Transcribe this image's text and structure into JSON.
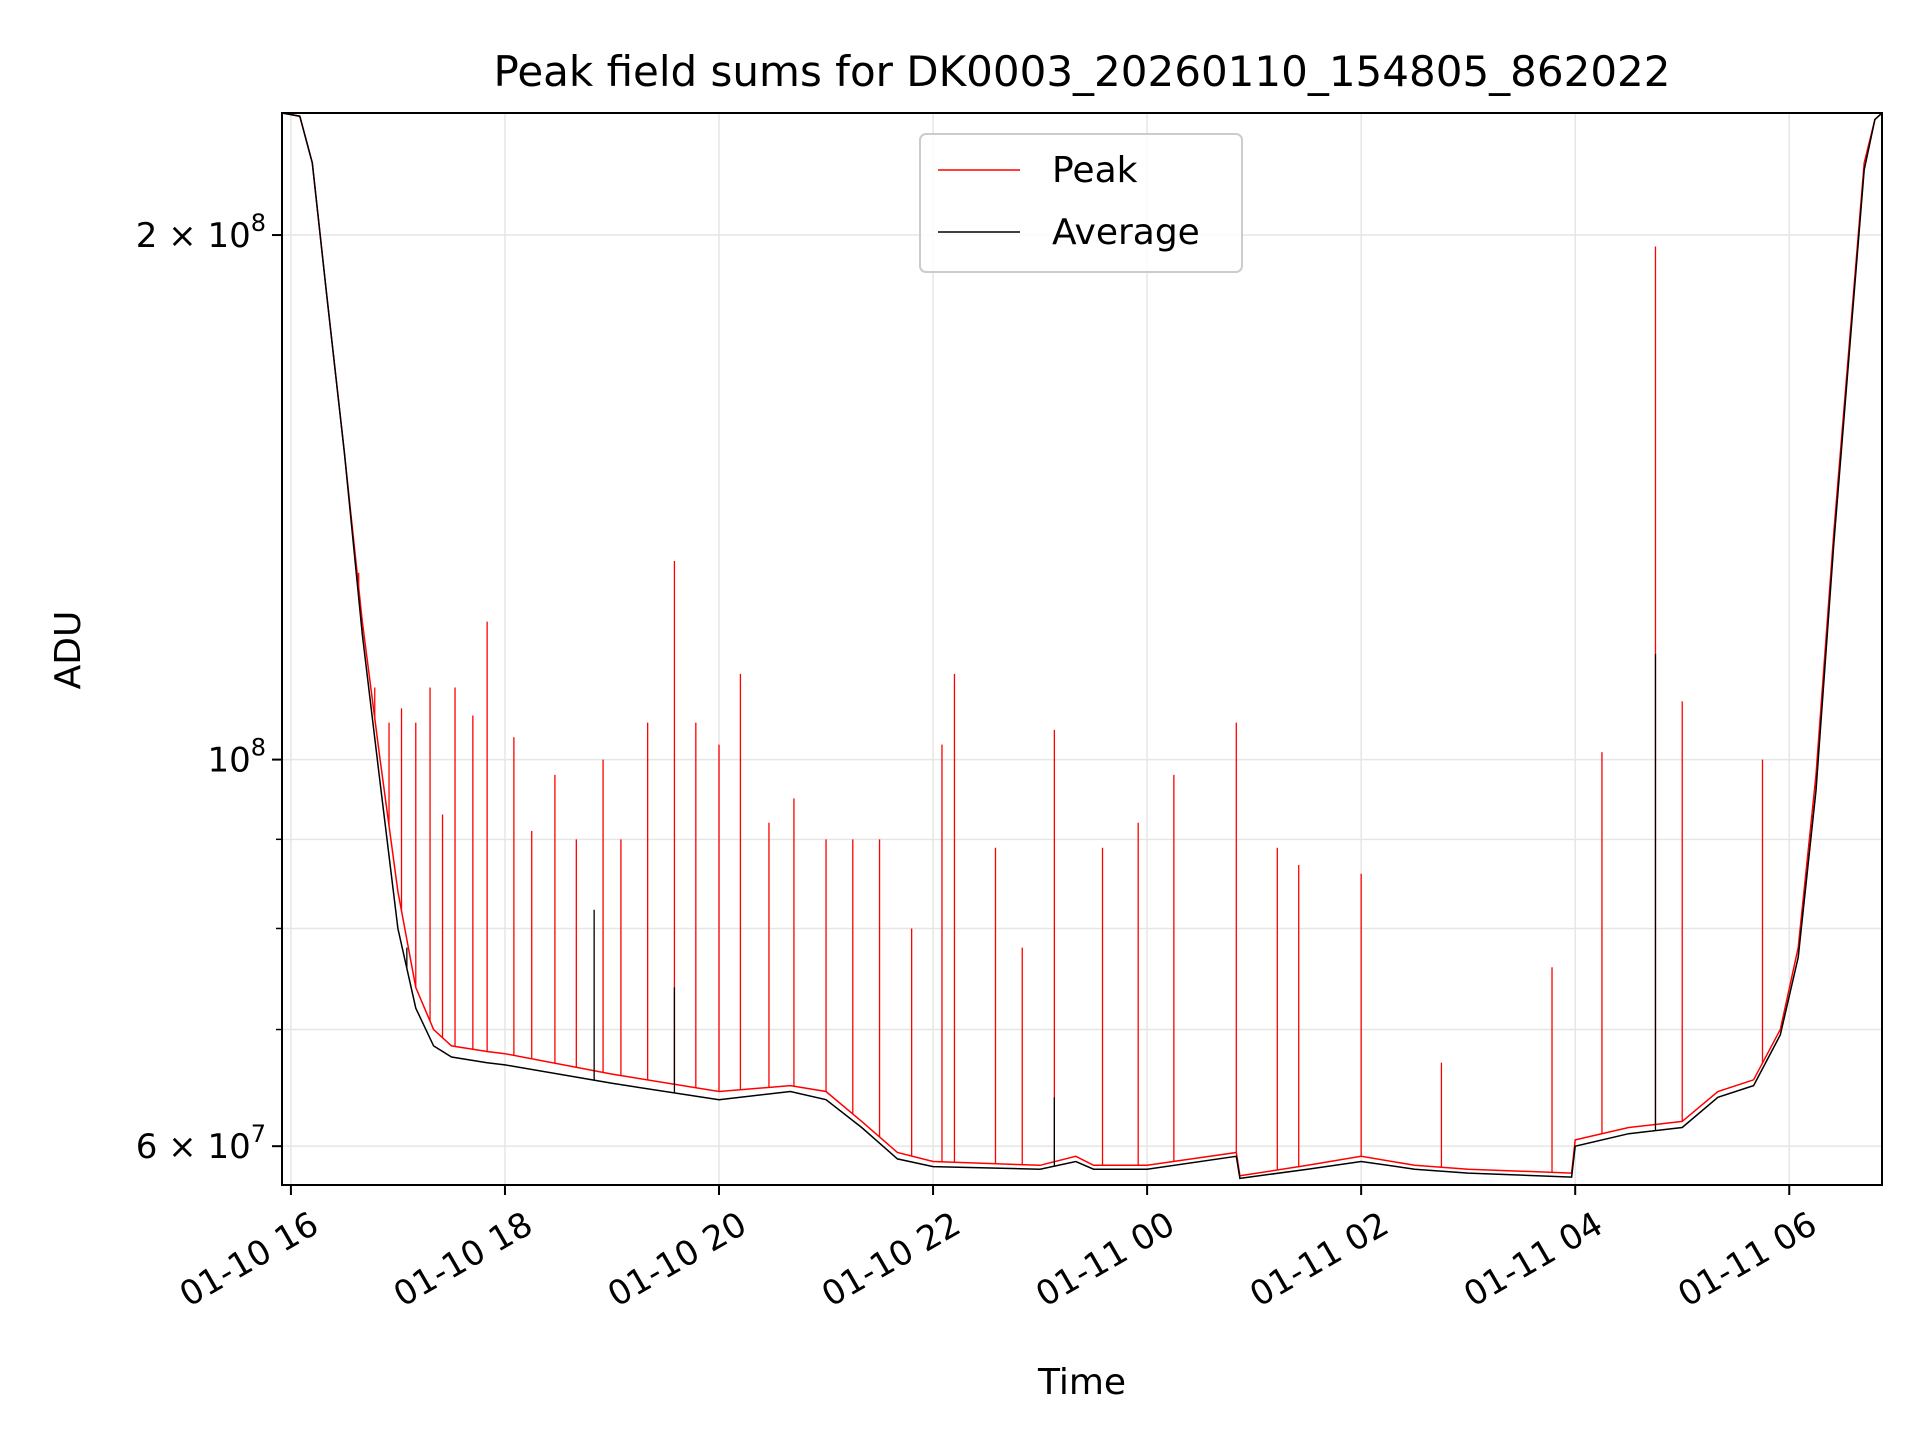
{
  "chart_data": {
    "type": "line",
    "title": "Peak field sums for DK0003_20260110_154805_862022",
    "xlabel": "Time",
    "ylabel": "ADU",
    "xlim": [
      "2026-01-10 15:55",
      "2026-01-11 06:52"
    ],
    "ylim": [
      57000000,
      235000000
    ],
    "yscale": "log",
    "grid": true,
    "legend_position": "top-center",
    "x_ticks": [
      {
        "t": "2026-01-10 16:00",
        "label": "01-10 16"
      },
      {
        "t": "2026-01-10 18:00",
        "label": "01-10 18"
      },
      {
        "t": "2026-01-10 20:00",
        "label": "01-10 20"
      },
      {
        "t": "2026-01-10 22:00",
        "label": "01-10 22"
      },
      {
        "t": "2026-01-11 00:00",
        "label": "01-11 00"
      },
      {
        "t": "2026-01-11 02:00",
        "label": "01-11 02"
      },
      {
        "t": "2026-01-11 04:00",
        "label": "01-11 04"
      },
      {
        "t": "2026-01-11 06:00",
        "label": "01-11 06"
      }
    ],
    "y_ticks": [
      {
        "value": 60000000,
        "mant": "6",
        "base": "10",
        "exp": "7"
      },
      {
        "value": 100000000,
        "mant": "",
        "base": "10",
        "exp": "8"
      },
      {
        "value": 200000000,
        "mant": "2",
        "base": "10",
        "exp": "8"
      }
    ],
    "y_minor_ticks": [
      70000000,
      80000000,
      90000000
    ],
    "series": [
      {
        "name": "Peak",
        "color": "#ff0000",
        "baseline": [
          [
            "2026-01-10 15:55",
            235000000.0
          ],
          [
            "2026-01-10 16:05",
            234000000.0
          ],
          [
            "2026-01-10 16:12",
            220000000.0
          ],
          [
            "2026-01-10 16:20",
            185000000.0
          ],
          [
            "2026-01-10 16:30",
            150000000.0
          ],
          [
            "2026-01-10 16:40",
            120000000.0
          ],
          [
            "2026-01-10 16:50",
            100000000.0
          ],
          [
            "2026-01-10 17:00",
            84000000.0
          ],
          [
            "2026-01-10 17:10",
            74000000.0
          ],
          [
            "2026-01-10 17:20",
            70000000.0
          ],
          [
            "2026-01-10 17:30",
            68500000.0
          ],
          [
            "2026-01-10 17:50",
            68000000.0
          ],
          [
            "2026-01-10 18:00",
            67800000.0
          ],
          [
            "2026-01-10 19:00",
            66000000.0
          ],
          [
            "2026-01-10 20:00",
            64500000.0
          ],
          [
            "2026-01-10 20:40",
            65000000.0
          ],
          [
            "2026-01-10 21:00",
            64500000.0
          ],
          [
            "2026-01-10 21:20",
            62000000.0
          ],
          [
            "2026-01-10 21:40",
            59500000.0
          ],
          [
            "2026-01-10 22:00",
            58800000.0
          ],
          [
            "2026-01-10 23:00",
            58500000.0
          ],
          [
            "2026-01-10 23:20",
            59200000.0
          ],
          [
            "2026-01-10 23:30",
            58500000.0
          ],
          [
            "2026-01-11 00:00",
            58500000.0
          ],
          [
            "2026-01-11 00:50",
            59500000.0
          ],
          [
            "2026-01-11 00:52",
            57700000.0
          ],
          [
            "2026-01-11 01:30",
            58500000.0
          ],
          [
            "2026-01-11 02:00",
            59200000.0
          ],
          [
            "2026-01-11 02:30",
            58500000.0
          ],
          [
            "2026-01-11 03:00",
            58200000.0
          ],
          [
            "2026-01-11 03:58",
            57900000.0
          ],
          [
            "2026-01-11 04:00",
            60500000.0
          ],
          [
            "2026-01-11 04:30",
            61500000.0
          ],
          [
            "2026-01-11 05:00",
            62000000.0
          ],
          [
            "2026-01-11 05:20",
            64500000.0
          ],
          [
            "2026-01-11 05:40",
            65500000.0
          ],
          [
            "2026-01-11 05:55",
            70000000.0
          ],
          [
            "2026-01-11 06:05",
            78000000.0
          ],
          [
            "2026-01-11 06:15",
            98000000.0
          ],
          [
            "2026-01-11 06:25",
            135000000.0
          ],
          [
            "2026-01-11 06:35",
            180000000.0
          ],
          [
            "2026-01-11 06:42",
            220000000.0
          ],
          [
            "2026-01-11 06:48",
            233000000.0
          ],
          [
            "2026-01-11 06:52",
            235000000.0
          ]
        ],
        "spikes": [
          [
            "2026-01-10 16:38",
            128000000.0
          ],
          [
            "2026-01-10 16:47",
            110000000.0
          ],
          [
            "2026-01-10 16:55",
            105000000.0
          ],
          [
            "2026-01-10 17:02",
            107000000.0
          ],
          [
            "2026-01-10 17:10",
            105000000.0
          ],
          [
            "2026-01-10 17:18",
            110000000.0
          ],
          [
            "2026-01-10 17:25",
            93000000.0
          ],
          [
            "2026-01-10 17:32",
            110000000.0
          ],
          [
            "2026-01-10 17:42",
            106000000.0
          ],
          [
            "2026-01-10 17:50",
            120000000.0
          ],
          [
            "2026-01-10 18:05",
            103000000.0
          ],
          [
            "2026-01-10 18:15",
            91000000.0
          ],
          [
            "2026-01-10 18:28",
            98000000.0
          ],
          [
            "2026-01-10 18:40",
            90000000.0
          ],
          [
            "2026-01-10 18:55",
            100000000.0
          ],
          [
            "2026-01-10 19:05",
            90000000.0
          ],
          [
            "2026-01-10 19:20",
            105000000.0
          ],
          [
            "2026-01-10 19:35",
            130000000.0
          ],
          [
            "2026-01-10 19:47",
            105000000.0
          ],
          [
            "2026-01-10 20:00",
            102000000.0
          ],
          [
            "2026-01-10 20:12",
            112000000.0
          ],
          [
            "2026-01-10 20:28",
            92000000.0
          ],
          [
            "2026-01-10 20:42",
            95000000.0
          ],
          [
            "2026-01-10 21:00",
            90000000.0
          ],
          [
            "2026-01-10 21:15",
            90000000.0
          ],
          [
            "2026-01-10 21:30",
            90000000.0
          ],
          [
            "2026-01-10 21:48",
            80000000.0
          ],
          [
            "2026-01-10 22:05",
            102000000.0
          ],
          [
            "2026-01-10 22:12",
            112000000.0
          ],
          [
            "2026-01-10 22:35",
            89000000.0
          ],
          [
            "2026-01-10 22:50",
            78000000.0
          ],
          [
            "2026-01-10 23:08",
            104000000.0
          ],
          [
            "2026-01-10 23:35",
            89000000.0
          ],
          [
            "2026-01-10 23:55",
            92000000.0
          ],
          [
            "2026-01-11 00:15",
            98000000.0
          ],
          [
            "2026-01-11 00:50",
            105000000.0
          ],
          [
            "2026-01-11 01:13",
            89000000.0
          ],
          [
            "2026-01-11 01:25",
            87000000.0
          ],
          [
            "2026-01-11 02:00",
            86000000.0
          ],
          [
            "2026-01-11 02:45",
            67000000.0
          ],
          [
            "2026-01-11 03:47",
            76000000.0
          ],
          [
            "2026-01-11 04:15",
            101000000.0
          ],
          [
            "2026-01-11 04:45",
            197000000.0
          ],
          [
            "2026-01-11 05:00",
            108000000.0
          ],
          [
            "2026-01-11 05:45",
            100000000.0
          ]
        ]
      },
      {
        "name": "Average",
        "color": "#000000",
        "baseline": [
          [
            "2026-01-10 15:55",
            235000000.0
          ],
          [
            "2026-01-10 16:05",
            234000000.0
          ],
          [
            "2026-01-10 16:12",
            220000000.0
          ],
          [
            "2026-01-10 16:20",
            185000000.0
          ],
          [
            "2026-01-10 16:30",
            150000000.0
          ],
          [
            "2026-01-10 16:40",
            118000000.0
          ],
          [
            "2026-01-10 16:50",
            97000000.0
          ],
          [
            "2026-01-10 17:00",
            80000000.0
          ],
          [
            "2026-01-10 17:10",
            72000000.0
          ],
          [
            "2026-01-10 17:20",
            68500000.0
          ],
          [
            "2026-01-10 17:30",
            67500000.0
          ],
          [
            "2026-01-10 17:50",
            67000000.0
          ],
          [
            "2026-01-10 18:00",
            66800000.0
          ],
          [
            "2026-01-10 19:00",
            65200000.0
          ],
          [
            "2026-01-10 20:00",
            63800000.0
          ],
          [
            "2026-01-10 20:40",
            64500000.0
          ],
          [
            "2026-01-10 21:00",
            63800000.0
          ],
          [
            "2026-01-10 21:20",
            61500000.0
          ],
          [
            "2026-01-10 21:40",
            59000000.0
          ],
          [
            "2026-01-10 22:00",
            58400000.0
          ],
          [
            "2026-01-10 23:00",
            58200000.0
          ],
          [
            "2026-01-10 23:20",
            58800000.0
          ],
          [
            "2026-01-10 23:30",
            58200000.0
          ],
          [
            "2026-01-11 00:00",
            58200000.0
          ],
          [
            "2026-01-11 00:50",
            59200000.0
          ],
          [
            "2026-01-11 00:52",
            57500000.0
          ],
          [
            "2026-01-11 01:30",
            58200000.0
          ],
          [
            "2026-01-11 02:00",
            58800000.0
          ],
          [
            "2026-01-11 02:30",
            58200000.0
          ],
          [
            "2026-01-11 03:00",
            57900000.0
          ],
          [
            "2026-01-11 03:58",
            57600000.0
          ],
          [
            "2026-01-11 04:00",
            60000000.0
          ],
          [
            "2026-01-11 04:30",
            61000000.0
          ],
          [
            "2026-01-11 05:00",
            61500000.0
          ],
          [
            "2026-01-11 05:20",
            64000000.0
          ],
          [
            "2026-01-11 05:40",
            65000000.0
          ],
          [
            "2026-01-11 05:55",
            69500000.0
          ],
          [
            "2026-01-11 06:05",
            77000000.0
          ],
          [
            "2026-01-11 06:15",
            96000000.0
          ],
          [
            "2026-01-11 06:25",
            133000000.0
          ],
          [
            "2026-01-11 06:35",
            178000000.0
          ],
          [
            "2026-01-11 06:42",
            218000000.0
          ],
          [
            "2026-01-11 06:48",
            233000000.0
          ],
          [
            "2026-01-11 06:52",
            235000000.0
          ]
        ],
        "spikes": [
          [
            "2026-01-10 17:05",
            78000000.0
          ],
          [
            "2026-01-10 18:50",
            82000000.0
          ],
          [
            "2026-01-10 19:35",
            74000000.0
          ],
          [
            "2026-01-10 23:08",
            64000000.0
          ],
          [
            "2026-01-11 04:45",
            115000000.0
          ]
        ]
      }
    ]
  }
}
